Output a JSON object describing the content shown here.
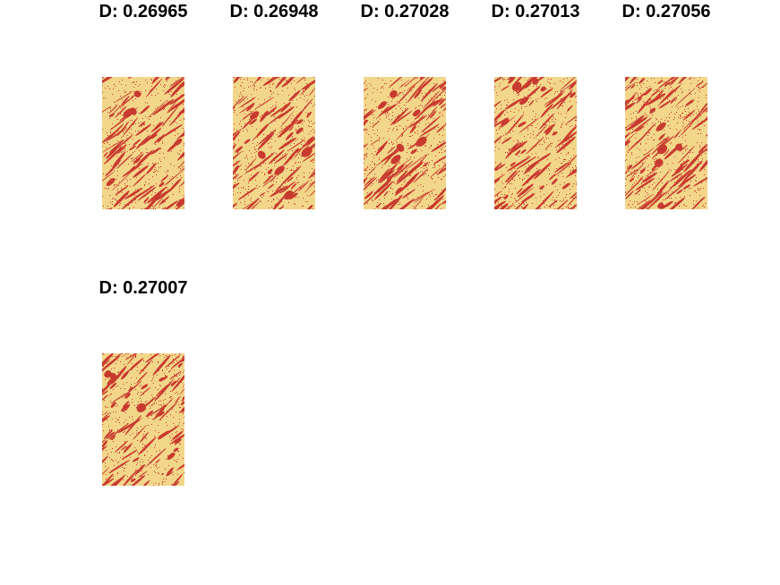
{
  "figure": {
    "colors": {
      "background": "#f2d68a",
      "foreground": "#c83a2f"
    },
    "panels": [
      {
        "title": "D: 0.26965"
      },
      {
        "title": "D: 0.26948"
      },
      {
        "title": "D: 0.27028"
      },
      {
        "title": "D: 0.27013"
      },
      {
        "title": "D: 0.27056"
      },
      {
        "title": "D: 0.27007"
      }
    ]
  }
}
